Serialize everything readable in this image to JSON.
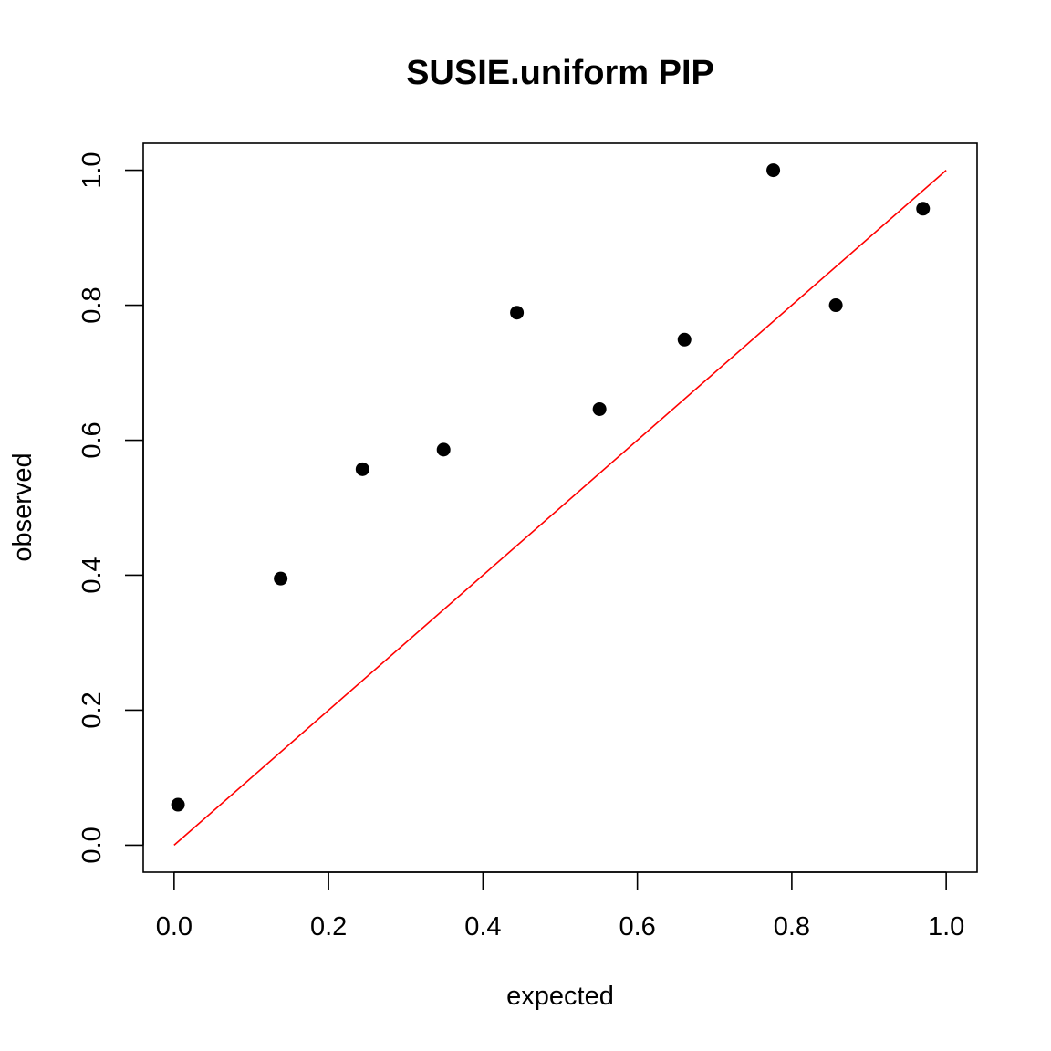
{
  "chart_data": {
    "type": "scatter",
    "title": "SUSIE.uniform PIP",
    "xlabel": "expected",
    "ylabel": "observed",
    "xlim": [
      -0.04,
      1.04
    ],
    "ylim": [
      -0.04,
      1.04
    ],
    "xticks": [
      0.0,
      0.2,
      0.4,
      0.6,
      0.8,
      1.0
    ],
    "xtick_labels": [
      "0.0",
      "0.2",
      "0.4",
      "0.6",
      "0.8",
      "1.0"
    ],
    "yticks": [
      0.0,
      0.2,
      0.4,
      0.6,
      0.8,
      1.0
    ],
    "ytick_labels": [
      "0.0",
      "0.2",
      "0.4",
      "0.6",
      "0.8",
      "1.0"
    ],
    "grid": false,
    "points": [
      {
        "x": 0.005,
        "y": 0.06
      },
      {
        "x": 0.138,
        "y": 0.395
      },
      {
        "x": 0.244,
        "y": 0.557
      },
      {
        "x": 0.349,
        "y": 0.586
      },
      {
        "x": 0.444,
        "y": 0.789
      },
      {
        "x": 0.551,
        "y": 0.646
      },
      {
        "x": 0.661,
        "y": 0.749
      },
      {
        "x": 0.776,
        "y": 1.0
      },
      {
        "x": 0.857,
        "y": 0.8
      },
      {
        "x": 0.97,
        "y": 0.943
      }
    ],
    "reference_line": {
      "from": [
        0,
        0
      ],
      "to": [
        1,
        1
      ],
      "color": "#ff0000"
    },
    "point_color": "#000000"
  }
}
